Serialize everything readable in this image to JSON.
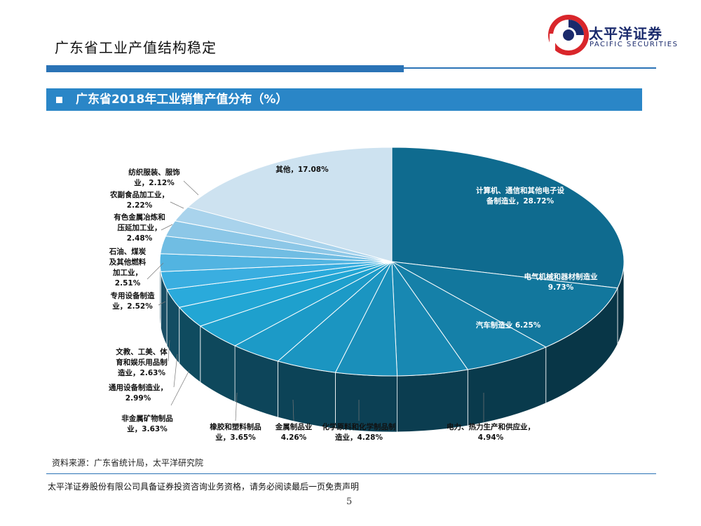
{
  "page": {
    "title": "广东省工业产值结构稳定",
    "logo_cn": "太平洋证券",
    "logo_en": "PACIFIC SECURITIES",
    "section_header": "广东省2018年工业销售产值分布（%）",
    "source": "资料来源：广东省统计局，太平洋研究院",
    "disclaimer": "太平洋证券股份有限公司具备证券投资咨询业务资格，请务必阅读最后一页免责声明",
    "page_number": "5"
  },
  "chart_data": {
    "type": "pie",
    "style": "3d",
    "slices": [
      {
        "label": [
          "计算机、通信和其他电子设",
          "备制造业，28.72%"
        ],
        "value": 28.72,
        "color": "#0f6b8f"
      },
      {
        "label": [
          "电气机械和器材制造业",
          "9.73%"
        ],
        "value": 9.73,
        "color": "#12779d"
      },
      {
        "label": [
          "汽车制造业   6.25%"
        ],
        "value": 6.25,
        "color": "#1580a8"
      },
      {
        "label": [
          "电力、热力生产和供应业，",
          "4.94%"
        ],
        "value": 4.94,
        "color": "#1888b2"
      },
      {
        "label": [
          "化学原料和化学制品制",
          "造业，4.28%"
        ],
        "value": 4.28,
        "color": "#1a8fba"
      },
      {
        "label": [
          "金属制品业",
          "4.26%"
        ],
        "value": 4.26,
        "color": "#1b95c1"
      },
      {
        "label": [
          "橡胶和塑料制品",
          "业，3.65%"
        ],
        "value": 3.65,
        "color": "#1c9ac7"
      },
      {
        "label": [
          "非金属矿物制品",
          "业，3.63%"
        ],
        "value": 3.63,
        "color": "#1ea0cd"
      },
      {
        "label": [
          "通用设备制造业，",
          "2.99%"
        ],
        "value": 2.99,
        "color": "#22a6d4"
      },
      {
        "label": [
          "文教、工美、体",
          "育和娱乐用品制",
          "造业，2.63%"
        ],
        "value": 2.63,
        "color": "#2aaadb"
      },
      {
        "label": [
          "专用设备制造",
          "业，2.52%"
        ],
        "value": 2.52,
        "color": "#3aaee0"
      },
      {
        "label": [
          "石油、煤炭",
          "及其他燃料",
          "加工业，",
          "2.51%"
        ],
        "value": 2.51,
        "color": "#52b4e1"
      },
      {
        "label": [
          "有色金属冶炼和",
          "压延加工业，",
          "2.48%"
        ],
        "value": 2.48,
        "color": "#70bde3"
      },
      {
        "label": [
          "农副食品加工业，",
          "2.22%"
        ],
        "value": 2.22,
        "color": "#8cc7e7"
      },
      {
        "label": [
          "纺织服装、服饰",
          "业，2.12%"
        ],
        "value": 2.12,
        "color": "#a9d3ec"
      },
      {
        "label": [
          "其他，17.08%"
        ],
        "value": 17.08,
        "color": "#cde2f0"
      }
    ]
  }
}
